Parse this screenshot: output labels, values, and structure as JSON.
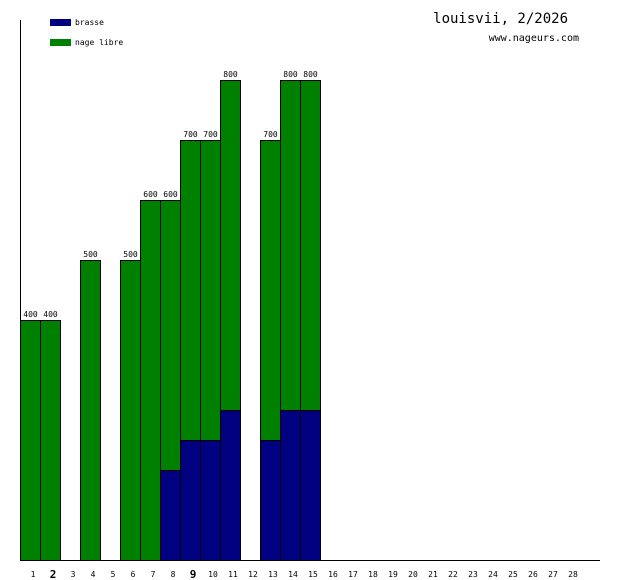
{
  "header": {
    "title": "louisvii, 2/2026",
    "site": "www.nageurs.com"
  },
  "colors": {
    "brasse": "#000080",
    "nage_libre": "#008000",
    "axis": "#000000"
  },
  "chart_data": {
    "type": "bar",
    "stacked": true,
    "title": "louisvii, 2/2026",
    "xlabel": "",
    "ylabel": "",
    "ylim": [
      0,
      900
    ],
    "grid": false,
    "legend_position": "top-left",
    "categories": [
      "1",
      "2",
      "3",
      "4",
      "5",
      "6",
      "7",
      "8",
      "9",
      "10",
      "11",
      "12",
      "13",
      "14",
      "15",
      "16",
      "17",
      "18",
      "19",
      "20",
      "21",
      "22",
      "23",
      "24",
      "25",
      "26",
      "27",
      "28"
    ],
    "emphasized_categories": [
      "2",
      "9"
    ],
    "series": [
      {
        "name": "brasse",
        "color": "#000080",
        "values": [
          0,
          0,
          0,
          0,
          0,
          0,
          0,
          150,
          200,
          200,
          250,
          0,
          200,
          250,
          250,
          0,
          0,
          0,
          0,
          0,
          0,
          0,
          0,
          0,
          0,
          0,
          0,
          0
        ]
      },
      {
        "name": "nage libre",
        "color": "#008000",
        "values": [
          400,
          400,
          0,
          500,
          0,
          500,
          600,
          450,
          500,
          500,
          550,
          0,
          500,
          550,
          550,
          0,
          0,
          0,
          0,
          0,
          0,
          0,
          0,
          0,
          0,
          0,
          0,
          0
        ]
      }
    ],
    "totals": [
      400,
      400,
      0,
      500,
      0,
      500,
      600,
      600,
      700,
      700,
      800,
      0,
      700,
      800,
      800,
      0,
      0,
      0,
      0,
      0,
      0,
      0,
      0,
      0,
      0,
      0,
      0,
      0
    ]
  }
}
